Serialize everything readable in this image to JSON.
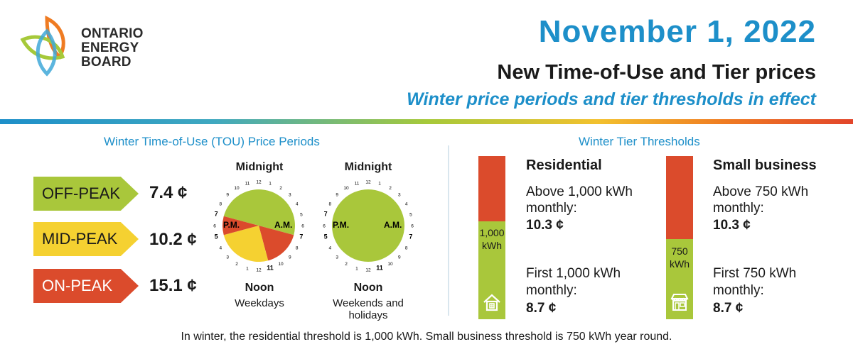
{
  "brand": {
    "logo_lines": [
      "ONTARIO",
      "ENERGY",
      "BOARD"
    ]
  },
  "header": {
    "date": "November 1, 2022",
    "title": "New Time-of-Use and Tier prices",
    "subtitle": "Winter price periods and tier thresholds in effect"
  },
  "tou": {
    "section_title": "Winter Time-of-Use (TOU) Price Periods",
    "periods": [
      {
        "label": "OFF-PEAK",
        "price": "7.4 ¢",
        "color": "#a9c73b"
      },
      {
        "label": "MID-PEAK",
        "price": "10.2 ¢",
        "color": "#f5d131"
      },
      {
        "label": "ON-PEAK",
        "price": "15.1 ¢",
        "color": "#db4b2c"
      }
    ],
    "clocks": [
      {
        "top_label": "Midnight",
        "bottom_label": "Noon",
        "caption": "Weekdays",
        "pm": "P.M.",
        "am": "A.M."
      },
      {
        "top_label": "Midnight",
        "bottom_label": "Noon",
        "caption": "Weekends and holidays",
        "pm": "P.M.",
        "am": "A.M."
      }
    ]
  },
  "tiers": {
    "section_title": "Winter Tier Thresholds",
    "residential": {
      "heading": "Residential",
      "threshold": "1,000",
      "threshold_unit": "kWh",
      "above_text_1": "Above 1,000 kWh",
      "above_text_2": "monthly:",
      "above_price": "10.3 ¢",
      "first_text_1": "First 1,000 kWh",
      "first_text_2": "monthly:",
      "first_price": "8.7 ¢",
      "icon": "house-icon"
    },
    "small_business": {
      "heading": "Small business",
      "threshold": "750",
      "threshold_unit": "kWh",
      "above_text_1": "Above 750 kWh",
      "above_text_2": "monthly:",
      "above_price": "10.3 ¢",
      "first_text_1": "First 750 kWh",
      "first_text_2": "monthly:",
      "first_price": "8.7 ¢",
      "icon": "storefront-icon"
    }
  },
  "footer": {
    "note": "In winter, the residential threshold is 1,000 kWh. Small business threshold is 750 kWh year round."
  },
  "colors": {
    "accent_blue": "#1d8fc9",
    "off_peak": "#a9c73b",
    "mid_peak": "#f5d131",
    "on_peak": "#db4b2c"
  }
}
